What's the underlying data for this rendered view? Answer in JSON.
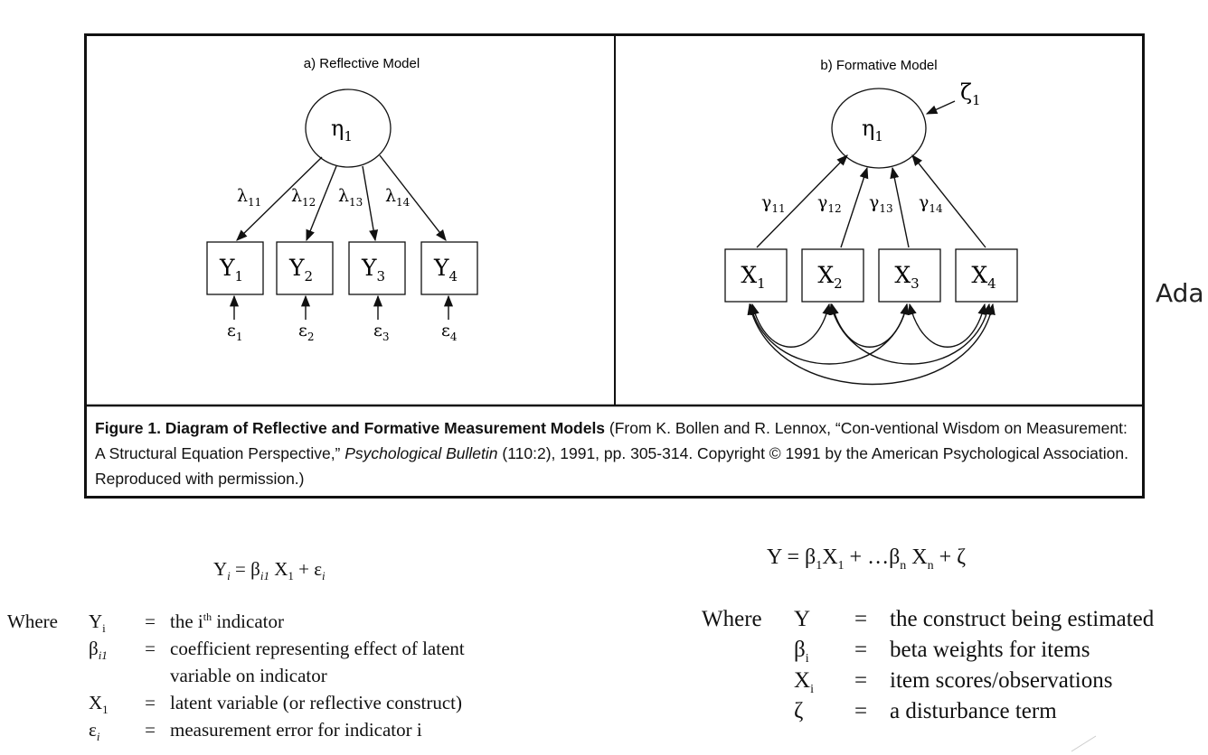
{
  "panel_a": {
    "title": "a) Reflective Model",
    "latent": "η",
    "latent_sub": "1",
    "loadings": [
      {
        "sym": "λ",
        "sub": "11"
      },
      {
        "sym": "λ",
        "sub": "12"
      },
      {
        "sym": "λ",
        "sub": "13"
      },
      {
        "sym": "λ",
        "sub": "14"
      }
    ],
    "indicators": [
      {
        "sym": "Y",
        "sub": "1"
      },
      {
        "sym": "Y",
        "sub": "2"
      },
      {
        "sym": "Y",
        "sub": "3"
      },
      {
        "sym": "Y",
        "sub": "4"
      }
    ],
    "errors": [
      {
        "sym": "ε",
        "sub": "1"
      },
      {
        "sym": "ε",
        "sub": "2"
      },
      {
        "sym": "ε",
        "sub": "3"
      },
      {
        "sym": "ε",
        "sub": "4"
      }
    ]
  },
  "panel_b": {
    "title": "b) Formative Model",
    "latent": "η",
    "latent_sub": "1",
    "disturbance": "ζ",
    "disturbance_sub": "1",
    "weights": [
      {
        "sym": "γ",
        "sub": "11"
      },
      {
        "sym": "γ",
        "sub": "12"
      },
      {
        "sym": "γ",
        "sub": "13"
      },
      {
        "sym": "γ",
        "sub": "14"
      }
    ],
    "indicators": [
      {
        "sym": "X",
        "sub": "1"
      },
      {
        "sym": "X",
        "sub": "2"
      },
      {
        "sym": "X",
        "sub": "3"
      },
      {
        "sym": "X",
        "sub": "4"
      }
    ]
  },
  "caption": {
    "bold": "Figure 1.  Diagram of Reflective and Formative Measurement Models",
    "part1": " (From K. Bollen and R. Lennox, “Con-ventional Wisdom on Measurement:  A Structural Equation Perspective,” ",
    "journal": "Psychological Bulletin",
    "part2": " (110:2), 1991, pp. 305-314.  Copyright © 1991 by the American Psychological Association.  Reproduced with permission.)"
  },
  "side_text": "Ada",
  "left_equation": {
    "lhs": "Y",
    "lhs_sub": "i",
    "rhs_a": " = β",
    "rhs_a_sub": "i1",
    "rhs_b": " X",
    "rhs_b_sub": "1",
    "rhs_c": " + ε",
    "rhs_c_sub": "i"
  },
  "left_defs": {
    "where": "Where",
    "rows": [
      {
        "sym": "Y",
        "sub": "i",
        "eq": "=",
        "desc": "the i",
        "desc_sup": "th",
        "desc_tail": "  indicator"
      },
      {
        "sym": "β",
        "sub": "i1",
        "eq": "=",
        "desc": "coefficient  representing  effect  of  latent",
        "desc_sup": "",
        "desc_tail": ""
      },
      {
        "sym": "",
        "sub": "",
        "eq": "",
        "desc": "variable on indicator",
        "desc_sup": "",
        "desc_tail": ""
      },
      {
        "sym": "X",
        "sub": "1",
        "eq": "=",
        "desc": "latent variable (or reflective construct)",
        "desc_sup": "",
        "desc_tail": ""
      },
      {
        "sym": "ε",
        "sub": "i",
        "eq": "=",
        "desc": "measurement error for indicator i",
        "desc_sup": "",
        "desc_tail": ""
      }
    ]
  },
  "right_equation": {
    "text_a": "Y = β",
    "sub_a": "1",
    "text_b": "X",
    "sub_b": "1",
    "text_c": " + …β",
    "sub_c": "n",
    "text_d": " X",
    "sub_d": "n",
    "text_e": " + ζ"
  },
  "right_defs": {
    "where": "Where",
    "rows": [
      {
        "sym": "Y",
        "sub": "",
        "eq": "=",
        "desc": "the construct being estimated"
      },
      {
        "sym": "β",
        "sub": "i",
        "eq": "=",
        "desc": "beta weights for items"
      },
      {
        "sym": "X",
        "sub": "i",
        "eq": "=",
        "desc": "item scores/observations"
      },
      {
        "sym": "ζ",
        "sub": "",
        "eq": "=",
        "desc": "a disturbance term"
      }
    ]
  }
}
